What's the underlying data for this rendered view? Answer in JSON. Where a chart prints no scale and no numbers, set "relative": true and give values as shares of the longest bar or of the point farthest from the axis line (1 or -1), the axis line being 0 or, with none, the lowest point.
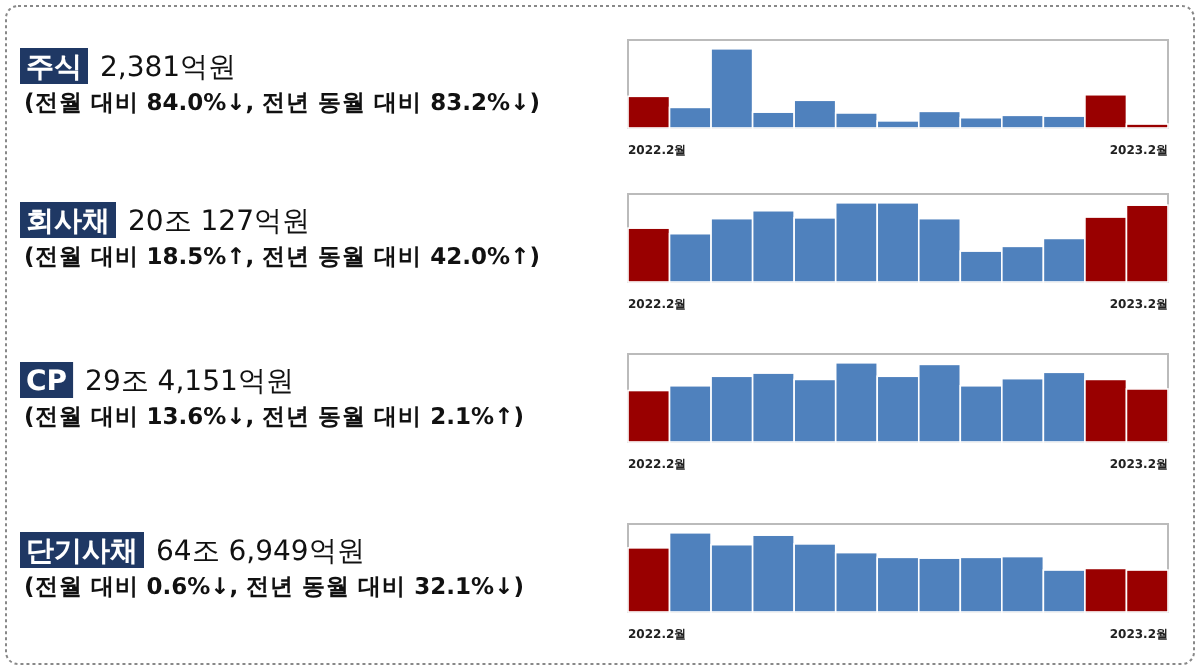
{
  "chart_data": [
    {
      "type": "bar",
      "relative": true,
      "annotations": [
        "주식",
        "2,381억원",
        "(전월 대비 84.0%↓, 전년 동월 대비 83.2%↓)"
      ],
      "categories": [
        "2022.2월",
        null,
        null,
        null,
        null,
        null,
        null,
        null,
        null,
        null,
        null,
        null,
        "2023.2월"
      ],
      "values": [
        0.4,
        0.26,
        1,
        0.2,
        0.35,
        0.19,
        0.09,
        0.21,
        0.13,
        0.16,
        0.15,
        0.42,
        0.05
      ],
      "colors": [
        "#990000",
        "#4f81bd",
        "#4f81bd",
        "#4f81bd",
        "#4f81bd",
        "#4f81bd",
        "#4f81bd",
        "#4f81bd",
        "#4f81bd",
        "#4f81bd",
        "#4f81bd",
        "#990000",
        "#990000"
      ]
    },
    {
      "type": "bar",
      "relative": true,
      "annotations": [
        "회사채",
        "20조 127억원",
        "(전월 대비 18.5%↑, 전년 동월 대비 42.0%↑)"
      ],
      "categories": [
        "2022.2월",
        null,
        null,
        null,
        null,
        null,
        null,
        null,
        null,
        null,
        null,
        null,
        "2023.2월"
      ],
      "values": [
        0.68,
        0.61,
        0.8,
        0.9,
        0.81,
        1,
        1,
        0.8,
        0.39,
        0.45,
        0.55,
        0.82,
        0.97
      ],
      "colors": [
        "#990000",
        "#4f81bd",
        "#4f81bd",
        "#4f81bd",
        "#4f81bd",
        "#4f81bd",
        "#4f81bd",
        "#4f81bd",
        "#4f81bd",
        "#4f81bd",
        "#4f81bd",
        "#990000",
        "#990000"
      ]
    },
    {
      "type": "bar",
      "relative": true,
      "annotations": [
        "CP",
        "29조 4,151억원",
        "(전월 대비 13.6%↓, 전년 동월 대비 2.1%↑)"
      ],
      "categories": [
        "2022.2월",
        null,
        null,
        null,
        null,
        null,
        null,
        null,
        null,
        null,
        null,
        null,
        "2023.2월"
      ],
      "values": [
        0.65,
        0.71,
        0.83,
        0.87,
        0.79,
        1,
        0.83,
        0.98,
        0.71,
        0.8,
        0.88,
        0.79,
        0.67
      ],
      "colors": [
        "#990000",
        "#4f81bd",
        "#4f81bd",
        "#4f81bd",
        "#4f81bd",
        "#4f81bd",
        "#4f81bd",
        "#4f81bd",
        "#4f81bd",
        "#4f81bd",
        "#4f81bd",
        "#990000",
        "#990000"
      ]
    },
    {
      "type": "bar",
      "relative": true,
      "annotations": [
        "단기사채",
        "64조 6,949억원",
        "(전월 대비 0.6%↓, 전년 동월 대비 32.1%↓)"
      ],
      "categories": [
        "2022.2월",
        null,
        null,
        null,
        null,
        null,
        null,
        null,
        null,
        null,
        null,
        null,
        "2023.2월"
      ],
      "values": [
        0.81,
        1,
        0.85,
        0.97,
        0.86,
        0.75,
        0.69,
        0.68,
        0.69,
        0.7,
        0.53,
        0.55,
        0.53
      ],
      "colors": [
        "#990000",
        "#4f81bd",
        "#4f81bd",
        "#4f81bd",
        "#4f81bd",
        "#4f81bd",
        "#4f81bd",
        "#4f81bd",
        "#4f81bd",
        "#4f81bd",
        "#4f81bd",
        "#990000",
        "#990000"
      ]
    }
  ]
}
